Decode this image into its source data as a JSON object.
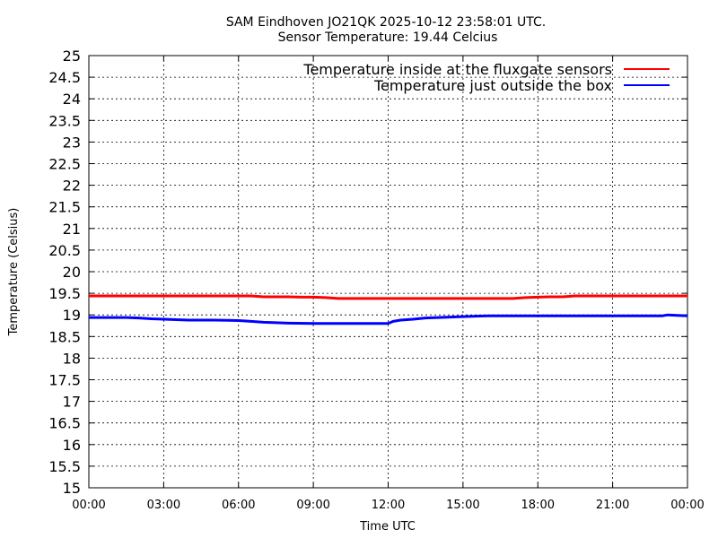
{
  "chart_data": {
    "type": "line",
    "title": "SAM Eindhoven JO21QK 2025-10-12 23:58:01 UTC.",
    "subtitle": "Sensor Temperature: 19.44 Celcius",
    "xlabel": "Time UTC",
    "ylabel": "Temperature (Celsius)",
    "xlim": [
      0,
      24
    ],
    "ylim": [
      15,
      25
    ],
    "x_ticks": [
      "00:00",
      "03:00",
      "06:00",
      "09:00",
      "12:00",
      "15:00",
      "18:00",
      "21:00",
      "00:00"
    ],
    "y_ticks": [
      "15",
      "15.5",
      "16",
      "16.5",
      "17",
      "17.5",
      "18",
      "18.5",
      "19",
      "19.5",
      "20",
      "20.5",
      "21",
      "21.5",
      "22",
      "22.5",
      "23",
      "23.5",
      "24",
      "24.5",
      "25"
    ],
    "grid": true,
    "legend_position": "top-right",
    "series": [
      {
        "name": "Temperature inside at the fluxgate sensors",
        "color": "#ff0000",
        "x": [
          0,
          0.5,
          1.0,
          1.5,
          2.0,
          3.0,
          4.0,
          5.0,
          6.0,
          6.5,
          7.0,
          7.5,
          8.0,
          8.5,
          9.0,
          9.5,
          10.0,
          11.0,
          12.0,
          13.0,
          14.0,
          15.0,
          16.0,
          17.0,
          17.5,
          18.0,
          18.5,
          19.0,
          19.5,
          20.0,
          21.0,
          22.0,
          23.0,
          24.0
        ],
        "values": [
          19.44,
          19.44,
          19.44,
          19.44,
          19.44,
          19.44,
          19.44,
          19.44,
          19.44,
          19.44,
          19.42,
          19.42,
          19.42,
          19.41,
          19.41,
          19.4,
          19.38,
          19.38,
          19.38,
          19.38,
          19.38,
          19.38,
          19.38,
          19.38,
          19.4,
          19.41,
          19.42,
          19.42,
          19.44,
          19.44,
          19.44,
          19.44,
          19.44,
          19.44
        ]
      },
      {
        "name": "Temperature just outside the box",
        "color": "#0000ff",
        "x": [
          0,
          0.5,
          1.0,
          1.5,
          2.0,
          2.5,
          3.0,
          4.0,
          5.0,
          6.0,
          6.5,
          7.0,
          7.5,
          8.0,
          9.0,
          10.0,
          11.0,
          12.0,
          12.2,
          12.5,
          13.0,
          13.5,
          14.0,
          14.5,
          15.0,
          15.5,
          16.0,
          17.0,
          18.0,
          19.0,
          20.0,
          21.0,
          22.0,
          23.0,
          23.2,
          24.0
        ],
        "values": [
          18.94,
          18.94,
          18.94,
          18.94,
          18.93,
          18.91,
          18.9,
          18.88,
          18.88,
          18.87,
          18.85,
          18.83,
          18.82,
          18.81,
          18.8,
          18.8,
          18.8,
          18.8,
          18.85,
          18.88,
          18.9,
          18.93,
          18.94,
          18.95,
          18.96,
          18.97,
          18.98,
          18.98,
          18.98,
          18.98,
          18.98,
          18.98,
          18.98,
          18.98,
          19.0,
          18.98
        ]
      }
    ]
  }
}
